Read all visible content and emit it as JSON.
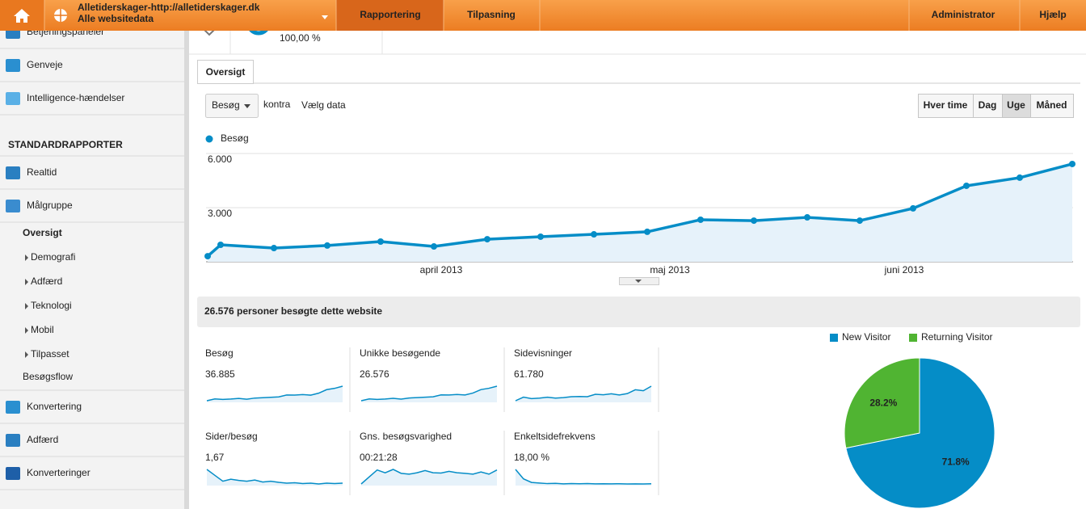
{
  "header": {
    "site_url": "Alletiderskager-http://alletiderskager.dk",
    "site_view": "Alle websitedata",
    "nav": [
      "Rapportering",
      "Tilpasning"
    ],
    "nav_right": [
      "Administrator",
      "Hjælp"
    ]
  },
  "top_strip": {
    "percent": "100,00 %"
  },
  "sidebar": {
    "items": [
      "Betjeningspaneler",
      "Genveje",
      "Intelligence-hændelser"
    ],
    "section": "STANDARDRAPPORTER",
    "reports": [
      "Realtid",
      "Målgruppe"
    ],
    "audience": {
      "current": "Oversigt",
      "sub": [
        "Demografi",
        "Adfærd",
        "Teknologi",
        "Mobil",
        "Tilpasset"
      ],
      "flow": "Besøgsflow"
    },
    "more": [
      "Konvertering",
      "Adfærd",
      "Konverteringer"
    ]
  },
  "tab": "Oversigt",
  "controls": {
    "metric": "Besøg",
    "versus": "kontra",
    "select": "Vælg data",
    "periods": [
      "Hver time",
      "Dag",
      "Uge",
      "Måned"
    ],
    "active_period": 2
  },
  "visits_chart": {
    "type": "line",
    "legend": "Besøg",
    "color": "#058dc7",
    "categories": [
      null,
      null,
      null,
      null,
      null,
      "april 2013",
      null,
      null,
      null,
      "maj 2013",
      null,
      null,
      null,
      null,
      "juni 2013",
      null,
      null,
      null
    ],
    "values": [
      310,
      940,
      760,
      900,
      1120,
      850,
      1250,
      1390,
      1520,
      1660,
      2330,
      2280,
      2460,
      2280,
      2960,
      4210,
      4660,
      5420
    ],
    "ylim": [
      0,
      6000
    ],
    "yticks": [
      {
        "value": 3000,
        "label": "3.000"
      },
      {
        "value": 6000,
        "label": "6.000"
      }
    ],
    "grid": true
  },
  "summary": "26.576 personer besøgte dette website",
  "metrics": [
    {
      "label": "Besøg",
      "value": "36.885",
      "spark": [
        310,
        940,
        760,
        900,
        1120,
        850,
        1250,
        1390,
        1520,
        1660,
        2330,
        2280,
        2460,
        2280,
        2960,
        4210,
        4660,
        5420
      ]
    },
    {
      "label": "Unikke besøgende",
      "value": "26.576",
      "spark": [
        300,
        860,
        700,
        830,
        1030,
        790,
        1130,
        1260,
        1380,
        1500,
        2080,
        2040,
        2190,
        2050,
        2640,
        3690,
        4080,
        4710
      ]
    },
    {
      "label": "Sidevisninger",
      "value": "61.780",
      "spark": [
        600,
        2100,
        1500,
        1700,
        2100,
        1700,
        1900,
        2300,
        2400,
        2300,
        3300,
        3100,
        3500,
        3000,
        3600,
        5200,
        4800,
        6700
      ]
    },
    {
      "label": "Sider/besøg",
      "value": "1,67",
      "spark": [
        1.9,
        1.75,
        1.6,
        1.65,
        1.62,
        1.6,
        1.63,
        1.58,
        1.6,
        1.57,
        1.55,
        1.56,
        1.54,
        1.55,
        1.53,
        1.55,
        1.54,
        1.55
      ]
    },
    {
      "label": "Gns. besøgsvarighed",
      "value": "00:21:28",
      "spark": [
        900,
        1150,
        1400,
        1300,
        1420,
        1280,
        1250,
        1300,
        1380,
        1300,
        1290,
        1350,
        1300,
        1280,
        1250,
        1330,
        1250,
        1400
      ]
    },
    {
      "label": "Enkeltsidefrekvens",
      "value": "18,00 %",
      "spark": [
        30,
        22,
        19,
        18.5,
        18,
        18.2,
        17.8,
        18,
        17.9,
        18,
        17.8,
        17.9,
        17.8,
        17.9,
        17.7,
        17.8,
        17.7,
        17.9
      ]
    }
  ],
  "visitor_pie": {
    "type": "pie",
    "labels": [
      "New Visitor",
      "Returning Visitor"
    ],
    "values": [
      71.8,
      28.2
    ],
    "value_labels": [
      "71.8%",
      "28.2%"
    ],
    "colors": [
      "#058dc7",
      "#50b432"
    ]
  }
}
